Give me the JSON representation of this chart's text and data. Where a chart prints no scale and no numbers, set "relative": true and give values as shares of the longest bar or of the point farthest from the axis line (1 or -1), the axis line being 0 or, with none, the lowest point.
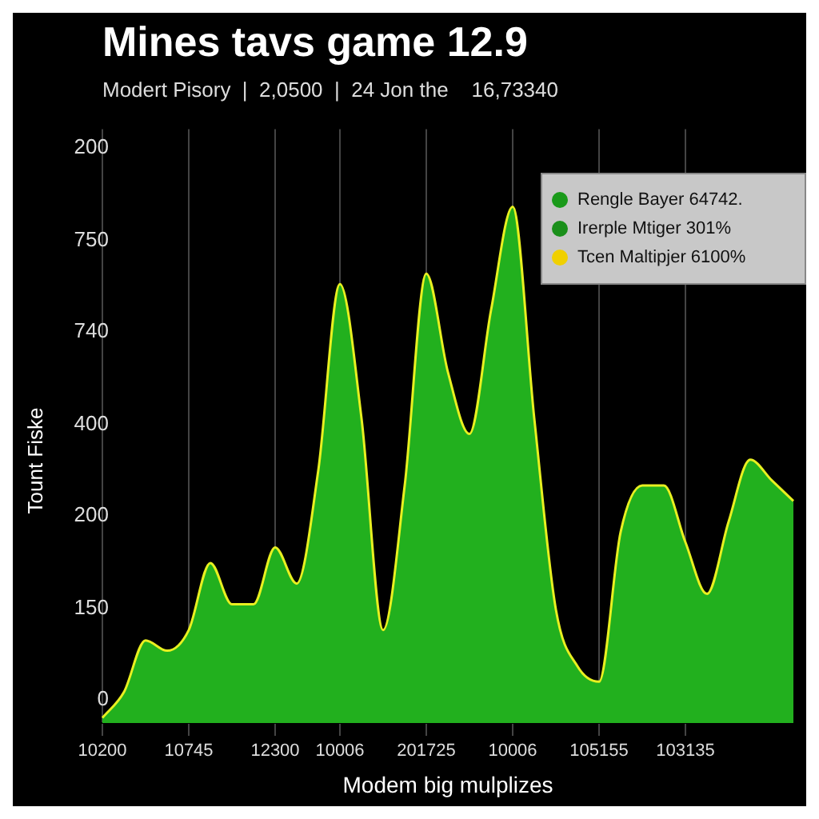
{
  "chart_data": {
    "type": "area",
    "relative": true,
    "title": "Mines tavs game 12.9",
    "subtitle": "Modert Pisory  |  2,0500  |  24 Jon the    16,73340",
    "xlabel": "Modem big mulplizes",
    "ylabel": "Tount Fiske",
    "annotations": [
      "200",
      "750",
      "740",
      "400",
      "200",
      "150",
      "0",
      "Rengle Bayer 64742.",
      "Irerple Mtiger 301%",
      "Tcen Maltipjer 6100%"
    ],
    "categories": [
      "10200",
      null,
      null,
      null,
      "10745",
      null,
      null,
      null,
      "12300",
      null,
      null,
      "10006",
      null,
      null,
      null,
      "201725",
      null,
      null,
      null,
      "10006",
      null,
      null,
      null,
      "105155",
      null,
      null,
      null,
      "103135",
      null,
      null,
      null,
      null,
      null
    ],
    "series": [
      {
        "color": "#22b01e",
        "values": [
          0.01,
          0.06,
          0.16,
          0.14,
          0.18,
          0.31,
          0.23,
          0.23,
          0.34,
          0.27,
          0.49,
          0.85,
          0.59,
          0.18,
          0.46,
          0.87,
          0.68,
          0.56,
          0.8,
          1,
          0.59,
          0.22,
          0.11,
          0.08,
          0.37,
          0.46,
          0.46,
          0.35,
          0.25,
          0.39,
          0.51,
          0.47,
          0.43
        ]
      }
    ],
    "grid": "x",
    "legend": false,
    "line_style": "solid",
    "marker": "none"
  }
}
